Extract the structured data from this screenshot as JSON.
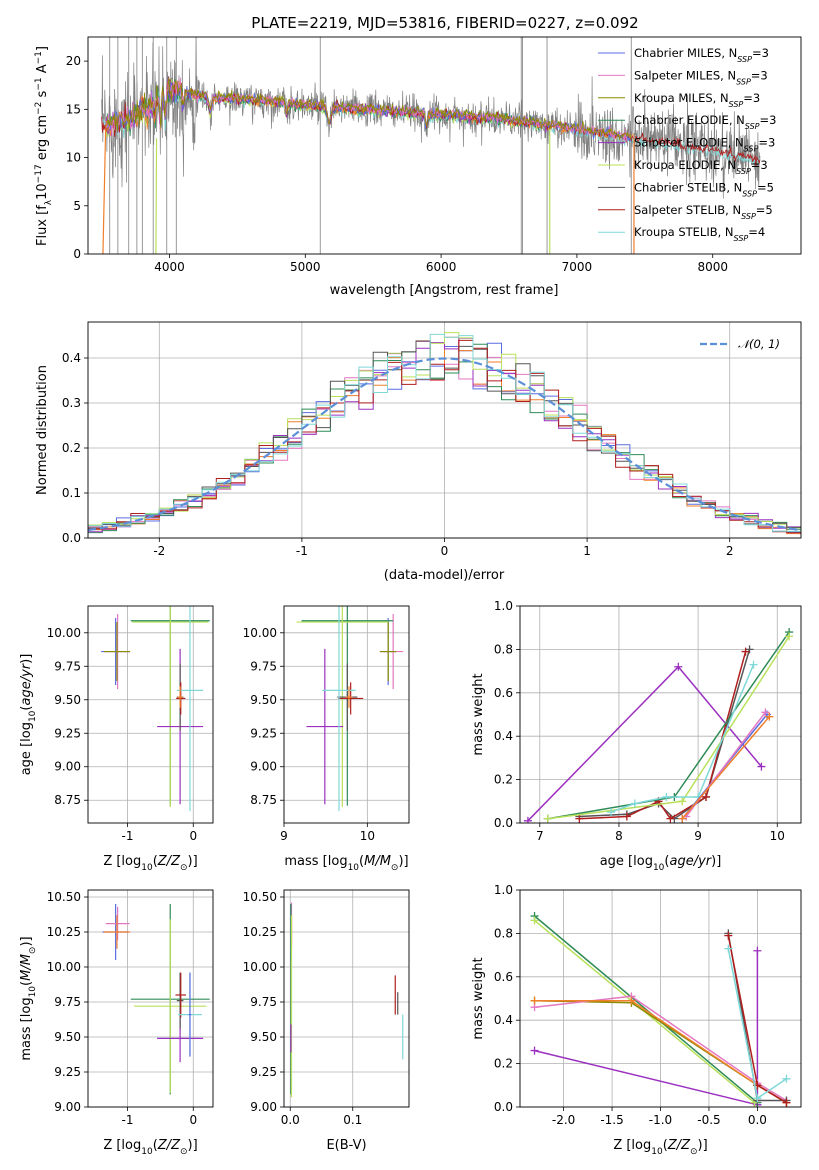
{
  "figure_title": "PLATE=2219, MJD=53816, FIBERID=0227, z=0.092",
  "colors": {
    "Chabrier MILES": "#5b6ee1",
    "Salpeter MILES": "#e377c2",
    "Kroupa MILES": "#8c8c00",
    "Chabrier ELODIE": "#2e8b57",
    "Salpeter ELODIE": "#9b30c0",
    "Kroupa ELODIE": "#b8e05a",
    "Chabrier STELIB": "#555555",
    "Salpeter STELIB": "#b01e1e",
    "Kroupa STELIB": "#7fd8d8",
    "data": "#808080",
    "orange": "#f07f2a",
    "gauss": "#5b8fd8"
  },
  "chart_data": [
    {
      "id": "spectrum",
      "type": "line",
      "title": "PLATE=2219, MJD=53816, FIBERID=0227, z=0.092",
      "xlabel": "wavelength [Angstrom, rest frame]",
      "ylabel": "Flux [f_λ 10^-17 erg cm^-2 s^-1 A^-1]",
      "xlim": [
        3400,
        8650
      ],
      "ylim": [
        0,
        22.5
      ],
      "xticks": [
        4000,
        5000,
        6000,
        7000,
        8000
      ],
      "yticks": [
        0,
        5,
        10,
        15,
        20
      ],
      "legend": [
        {
          "label": "Chabrier MILES, N",
          "sub": "SSP",
          "tail": "=3",
          "color": "#5b6ee1"
        },
        {
          "label": "Salpeter MILES, N",
          "sub": "SSP",
          "tail": "=3",
          "color": "#e377c2"
        },
        {
          "label": "Kroupa MILES, N",
          "sub": "SSP",
          "tail": "=3",
          "color": "#8c8c00"
        },
        {
          "label": "Chabrier ELODIE, N",
          "sub": "SSP",
          "tail": "=3",
          "color": "#2e8b57"
        },
        {
          "label": "Salpeter ELODIE, N",
          "sub": "SSP",
          "tail": "=3",
          "color": "#9b30c0"
        },
        {
          "label": "Kroupa ELODIE, N",
          "sub": "SSP",
          "tail": "=3",
          "color": "#b8e05a"
        },
        {
          "label": "Chabrier STELIB, N",
          "sub": "SSP",
          "tail": "=5",
          "color": "#555555"
        },
        {
          "label": "Salpeter STELIB, N",
          "sub": "SSP",
          "tail": "=5",
          "color": "#b01e1e"
        },
        {
          "label": "Kroupa STELIB, N",
          "sub": "SSP",
          "tail": "=4",
          "color": "#7fd8d8"
        }
      ],
      "continuum_knots": [
        [
          3500,
          13.2
        ],
        [
          3700,
          14.0
        ],
        [
          3850,
          15.5
        ],
        [
          4000,
          17.0
        ],
        [
          4300,
          16.2
        ],
        [
          4600,
          16.0
        ],
        [
          5000,
          15.4
        ],
        [
          5500,
          14.9
        ],
        [
          6000,
          14.4
        ],
        [
          6500,
          13.9
        ],
        [
          7000,
          12.9
        ],
        [
          7500,
          11.8
        ],
        [
          8000,
          10.8
        ],
        [
          8350,
          9.7
        ]
      ]
    },
    {
      "id": "residual_hist",
      "type": "line",
      "xlabel": "(data-model)/error",
      "ylabel": "Normed distribution",
      "xlim": [
        -2.5,
        2.5
      ],
      "ylim": [
        0,
        0.48
      ],
      "xticks": [
        -2,
        -1,
        0,
        1,
        2
      ],
      "yticks": [
        0.0,
        0.1,
        0.2,
        0.3,
        0.4
      ],
      "legend_label": "𝒩(0, 1)",
      "bin_width": 0.1
    },
    {
      "id": "age_vs_Z",
      "type": "scatter",
      "xlabel": "Z [log10(Z/Z⊙)]",
      "ylabel": "age [log10(age/yr)]",
      "xlim": [
        -1.6,
        0.3
      ],
      "ylim": [
        8.58,
        10.2
      ],
      "xticks": [
        -1,
        0
      ],
      "yticks": [
        8.75,
        9.0,
        9.25,
        9.5,
        9.75,
        10.0
      ],
      "points": [
        {
          "m": "Chabrier MILES",
          "x": -1.18,
          "xe": 0.22,
          "y": 9.86,
          "ye": 0.25
        },
        {
          "m": "Salpeter MILES",
          "x": -1.15,
          "xe": 0.18,
          "y": 9.86,
          "ye": 0.28
        },
        {
          "m": "Kroupa MILES",
          "x": -1.16,
          "xe": 0.2,
          "y": 9.86,
          "ye": 0.22
        },
        {
          "m": "Chabrier ELODIE",
          "x": -0.35,
          "xe": 0.6,
          "y": 10.09,
          "ye": 1.38
        },
        {
          "m": "Kroupa ELODIE",
          "x": -0.35,
          "xe": 0.58,
          "y": 10.08,
          "ye": 1.38
        },
        {
          "m": "Salpeter ELODIE",
          "x": -0.2,
          "xe": 0.35,
          "y": 9.3,
          "ye": 0.58
        },
        {
          "m": "Chabrier STELIB",
          "x": -0.2,
          "xe": 0.05,
          "y": 9.52,
          "ye": 0.25
        },
        {
          "m": "Salpeter STELIB",
          "x": -0.19,
          "xe": 0.07,
          "y": 9.51,
          "ye": 0.12
        },
        {
          "m": "Kroupa STELIB",
          "x": -0.05,
          "xe": 0.2,
          "y": 9.57,
          "ye": 0.9
        },
        {
          "m": "orange",
          "x": -0.2,
          "xe": 0.04,
          "y": 9.52,
          "ye": 0.08
        }
      ]
    },
    {
      "id": "age_vs_mass",
      "type": "scatter",
      "xlabel": "mass [log10(M/M⊙)]",
      "ylabel": "",
      "xlim": [
        9.0,
        10.5
      ],
      "ylim": [
        8.58,
        10.2
      ],
      "xticks": [
        9,
        10
      ],
      "yticks": [
        8.75,
        9.0,
        9.25,
        9.5,
        9.75,
        10.0
      ],
      "points": [
        {
          "m": "Chabrier MILES",
          "x": 10.25,
          "xe": 0.1,
          "y": 9.86,
          "ye": 0.25
        },
        {
          "m": "Salpeter MILES",
          "x": 10.31,
          "xe": 0.12,
          "y": 9.86,
          "ye": 0.28
        },
        {
          "m": "Kroupa MILES",
          "x": 10.25,
          "xe": 0.1,
          "y": 9.86,
          "ye": 0.22
        },
        {
          "m": "Chabrier ELODIE",
          "x": 9.76,
          "xe": 0.55,
          "y": 10.09,
          "ye": 1.38
        },
        {
          "m": "Kroupa ELODIE",
          "x": 9.7,
          "xe": 0.55,
          "y": 10.08,
          "ye": 1.38
        },
        {
          "m": "Salpeter ELODIE",
          "x": 9.49,
          "xe": 0.22,
          "y": 9.3,
          "ye": 0.58
        },
        {
          "m": "Chabrier STELIB",
          "x": 9.76,
          "xe": 0.12,
          "y": 9.52,
          "ye": 0.25
        },
        {
          "m": "Salpeter STELIB",
          "x": 9.8,
          "xe": 0.15,
          "y": 9.51,
          "ye": 0.12
        },
        {
          "m": "Kroupa STELIB",
          "x": 9.66,
          "xe": 0.2,
          "y": 9.57,
          "ye": 0.9
        },
        {
          "m": "orange",
          "x": 9.78,
          "xe": 0.04,
          "y": 9.52,
          "ye": 0.08
        }
      ]
    },
    {
      "id": "weight_vs_age",
      "type": "line",
      "xlabel": "age [log10(age/yr)]",
      "ylabel": "mass weight",
      "xlim": [
        6.75,
        10.3
      ],
      "ylim": [
        0,
        1.0
      ],
      "xticks": [
        7,
        8,
        9,
        10
      ],
      "yticks": [
        0.0,
        0.2,
        0.4,
        0.6,
        0.8,
        1.0
      ],
      "series": [
        {
          "m": "Salpeter ELODIE",
          "points": [
            [
              6.85,
              0.01
            ],
            [
              8.75,
              0.72
            ],
            [
              9.8,
              0.26
            ]
          ]
        },
        {
          "m": "Chabrier STELIB",
          "points": [
            [
              7.5,
              0.03
            ],
            [
              8.1,
              0.04
            ],
            [
              8.5,
              0.09
            ],
            [
              8.7,
              0.02
            ],
            [
              9.1,
              0.12
            ],
            [
              9.65,
              0.8
            ]
          ]
        },
        {
          "m": "Salpeter STELIB",
          "points": [
            [
              7.5,
              0.02
            ],
            [
              8.1,
              0.03
            ],
            [
              8.5,
              0.1
            ],
            [
              8.65,
              0.02
            ],
            [
              9.1,
              0.12
            ],
            [
              9.6,
              0.79
            ]
          ]
        },
        {
          "m": "Chabrier ELODIE",
          "points": [
            [
              7.1,
              0.02
            ],
            [
              8.7,
              0.12
            ],
            [
              10.15,
              0.88
            ]
          ]
        },
        {
          "m": "Kroupa ELODIE",
          "points": [
            [
              7.1,
              0.02
            ],
            [
              8.8,
              0.1
            ],
            [
              10.15,
              0.86
            ]
          ]
        },
        {
          "m": "Kroupa STELIB",
          "points": [
            [
              7.9,
              0.05
            ],
            [
              8.2,
              0.09
            ],
            [
              8.6,
              0.12
            ],
            [
              9.0,
              0.12
            ],
            [
              9.7,
              0.73
            ]
          ]
        },
        {
          "m": "Chabrier MILES",
          "points": [
            [
              8.8,
              0.02
            ],
            [
              9.87,
              0.5
            ]
          ]
        },
        {
          "m": "Salpeter MILES",
          "points": [
            [
              8.85,
              0.03
            ],
            [
              9.85,
              0.51
            ]
          ]
        },
        {
          "m": "orange",
          "points": [
            [
              8.8,
              0.02
            ],
            [
              9.9,
              0.49
            ]
          ]
        }
      ]
    },
    {
      "id": "mass_vs_Z",
      "type": "scatter",
      "xlabel": "Z [log10(Z/Z⊙)]",
      "ylabel": "mass [log10(M/M⊙)]",
      "xlim": [
        -1.6,
        0.3
      ],
      "ylim": [
        9.0,
        10.55
      ],
      "xticks": [
        -1,
        0
      ],
      "yticks": [
        9.0,
        9.25,
        9.5,
        9.75,
        10.0,
        10.25,
        10.5
      ],
      "points": [
        {
          "m": "Chabrier MILES",
          "x": -1.18,
          "xe": 0.2,
          "y": 10.25,
          "ye": 0.2
        },
        {
          "m": "Salpeter MILES",
          "x": -1.15,
          "xe": 0.18,
          "y": 10.31,
          "ye": 0.12
        },
        {
          "m": "orange",
          "x": -1.16,
          "xe": 0.2,
          "y": 10.25,
          "ye": 0.12
        },
        {
          "m": "Chabrier ELODIE",
          "x": -0.35,
          "xe": 0.6,
          "y": 9.77,
          "ye": 0.68
        },
        {
          "m": "Kroupa ELODIE",
          "x": -0.35,
          "xe": 0.55,
          "y": 9.72,
          "ye": 0.62
        },
        {
          "m": "Salpeter ELODIE",
          "x": -0.2,
          "xe": 0.35,
          "y": 9.49,
          "ye": 0.17
        },
        {
          "m": "Chabrier STELIB",
          "x": -0.2,
          "xe": 0.05,
          "y": 9.76,
          "ye": 0.2
        },
        {
          "m": "Salpeter STELIB",
          "x": -0.19,
          "xe": 0.08,
          "y": 9.8,
          "ye": 0.16
        },
        {
          "m": "Kroupa STELIB",
          "x": -0.05,
          "xe": 0.18,
          "y": 9.66,
          "ye": 0.3
        },
        {
          "m": "Chabrier MILES",
          "x": -0.05,
          "xe": 0.02,
          "y": 9.66,
          "ye": 0.3
        }
      ]
    },
    {
      "id": "mass_vs_EBV",
      "type": "scatter",
      "xlabel": "E(B-V)",
      "ylabel": "",
      "xlim": [
        -0.01,
        0.19
      ],
      "ylim": [
        9.0,
        10.55
      ],
      "xticks": [
        0.0,
        0.1
      ],
      "yticks": [
        9.0,
        9.25,
        9.5,
        9.75,
        10.0,
        10.25,
        10.5
      ],
      "points": [
        {
          "m": "Chabrier MILES",
          "x": 0.001,
          "xe": 0,
          "y": 10.25,
          "ye": 0.2
        },
        {
          "m": "Salpeter MILES",
          "x": 0.002,
          "xe": 0,
          "y": 10.31,
          "ye": 0.15
        },
        {
          "m": "orange",
          "x": 0.002,
          "xe": 0,
          "y": 10.25,
          "ye": 0.12
        },
        {
          "m": "Chabrier ELODIE",
          "x": 0.001,
          "xe": 0,
          "y": 9.77,
          "ye": 0.68
        },
        {
          "m": "Kroupa ELODIE",
          "x": 0.002,
          "xe": 0,
          "y": 9.72,
          "ye": 0.65
        },
        {
          "m": "Salpeter ELODIE",
          "x": 0.001,
          "xe": 0,
          "y": 9.49,
          "ye": 0.1
        },
        {
          "m": "Salpeter STELIB",
          "x": 0.168,
          "xe": 0,
          "y": 9.8,
          "ye": 0.14
        },
        {
          "m": "Chabrier STELIB",
          "x": 0.172,
          "xe": 0,
          "y": 9.74,
          "ye": 0.08
        },
        {
          "m": "Kroupa STELIB",
          "x": 0.18,
          "xe": 0,
          "y": 9.5,
          "ye": 0.16
        }
      ]
    },
    {
      "id": "weight_vs_Z",
      "type": "line",
      "xlabel": "Z [log10(Z/Z⊙)]",
      "ylabel": "mass weight",
      "xlim": [
        -2.45,
        0.45
      ],
      "ylim": [
        0,
        1.0
      ],
      "xticks": [
        -2.0,
        -1.5,
        -1.0,
        -0.5,
        0.0
      ],
      "yticks": [
        0.0,
        0.2,
        0.4,
        0.6,
        0.8,
        1.0
      ],
      "series": [
        {
          "m": "Salpeter ELODIE",
          "points": [
            [
              -2.3,
              0.26
            ],
            [
              0.0,
              0.01
            ]
          ]
        },
        {
          "m": "Salpeter ELODIE",
          "points": [
            [
              0.0,
              0.01
            ],
            [
              0.0,
              0.72
            ]
          ]
        },
        {
          "m": "Chabrier ELODIE",
          "points": [
            [
              -2.3,
              0.88
            ],
            [
              0.0,
              0.02
            ]
          ]
        },
        {
          "m": "Kroupa ELODIE",
          "points": [
            [
              -2.3,
              0.86
            ],
            [
              -0.03,
              0.02
            ]
          ]
        },
        {
          "m": "Kroupa MILES",
          "points": [
            [
              -2.3,
              0.49
            ],
            [
              -1.3,
              0.48
            ],
            [
              0.0,
              0.1
            ],
            [
              0.3,
              0.02
            ]
          ]
        },
        {
          "m": "Salpeter MILES",
          "points": [
            [
              -2.3,
              0.46
            ],
            [
              -1.3,
              0.51
            ],
            [
              0.0,
              0.11
            ],
            [
              0.3,
              0.03
            ]
          ]
        },
        {
          "m": "orange",
          "points": [
            [
              -2.3,
              0.49
            ],
            [
              -1.3,
              0.49
            ],
            [
              0.0,
              0.1
            ],
            [
              0.3,
              0.02
            ]
          ]
        },
        {
          "m": "Chabrier STELIB",
          "points": [
            [
              -0.3,
              0.8
            ],
            [
              0.0,
              0.03
            ],
            [
              0.3,
              0.03
            ]
          ]
        },
        {
          "m": "Salpeter STELIB",
          "points": [
            [
              -0.3,
              0.79
            ],
            [
              0.0,
              0.1
            ],
            [
              0.3,
              0.02
            ]
          ]
        },
        {
          "m": "Kroupa STELIB",
          "points": [
            [
              -0.3,
              0.73
            ],
            [
              0.0,
              0.04
            ],
            [
              0.3,
              0.13
            ]
          ]
        }
      ]
    }
  ]
}
